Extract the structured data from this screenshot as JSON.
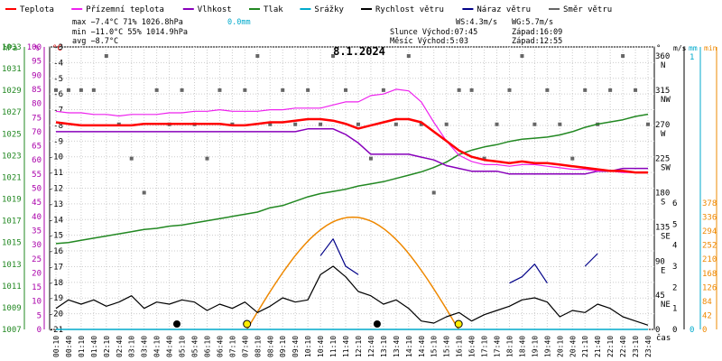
{
  "chart_data": {
    "type": "line",
    "title": "8.1.2024",
    "xlabel": "čas",
    "legend": [
      {
        "label": "Teplota",
        "color": "#ff0000"
      },
      {
        "label": "Přízemní teplota",
        "color": "#ee22ee"
      },
      {
        "label": "Vlhkost",
        "color": "#8800bb"
      },
      {
        "label": "Tlak",
        "color": "#228822"
      },
      {
        "label": "Srážky",
        "color": "#00aacc"
      },
      {
        "label": "Rychlost větru",
        "color": "#000000"
      },
      {
        "label": "Náraz větru",
        "color": "#000088"
      },
      {
        "label": "Směr větru",
        "color": "#666666"
      }
    ],
    "stats": {
      "max": "max −7.4°C  71%  1026.8hPa",
      "min": "min −11.0°C 55%  1014.9hPa",
      "avg": "avg −8.7°C",
      "rain": "0.0mm",
      "ws": "WS:4.3m/s",
      "wg": "WG:5.7m/s",
      "sun": "Slunce Východ:07:45",
      "sun_set": "Západ:16:09",
      "moon": "Měsíc  Východ:5:03",
      "moon_set": "Západ:12:55"
    },
    "axes": {
      "hpa": {
        "unit": "hPa",
        "ticks": [
          "1033",
          "1031",
          "1029",
          "1027",
          "1025",
          "1023",
          "1021",
          "1019",
          "1017",
          "1015",
          "1013",
          "1011",
          "1009",
          "1007"
        ]
      },
      "pct": {
        "unit": "%",
        "ticks": [
          "100",
          "95",
          "90",
          "85",
          "80",
          "75",
          "70",
          "65",
          "60",
          "55",
          "50",
          "45",
          "40",
          "35",
          "30",
          "25",
          "20",
          "15",
          "10",
          "5",
          "0"
        ]
      },
      "temp": {
        "unit": "°C",
        "ticks": [
          "-3",
          "-4",
          "-5",
          "-6",
          "-7",
          "-8",
          "-9",
          "-10",
          "-11",
          "-12",
          "-13",
          "-14",
          "-15",
          "-16",
          "-17",
          "-18",
          "-19",
          "-20",
          "-21"
        ]
      },
      "deg": {
        "unit": "°",
        "ticks": [
          "360",
          "315",
          "270",
          "225",
          "180",
          "135",
          "90",
          "45",
          "0"
        ],
        "dirs": [
          "N",
          "NW",
          "W",
          "SW",
          "S",
          "SE",
          "E",
          "NE"
        ]
      },
      "ms": {
        "unit": "m/s",
        "ticks": [
          "6",
          "5",
          "4",
          "3",
          "2",
          "1",
          "0"
        ]
      },
      "mm": {
        "unit": "mm",
        "ticks": [
          "1",
          "0"
        ]
      },
      "min": {
        "unit": "min",
        "ticks": [
          "378",
          "336",
          "294",
          "252",
          "210",
          "168",
          "126",
          "84",
          "42",
          "0"
        ]
      }
    },
    "x": [
      "00:10",
      "00:40",
      "01:10",
      "01:40",
      "02:10",
      "02:40",
      "03:10",
      "03:40",
      "04:10",
      "04:40",
      "05:10",
      "05:40",
      "06:10",
      "06:40",
      "07:10",
      "07:40",
      "08:10",
      "08:40",
      "09:10",
      "09:40",
      "10:10",
      "10:40",
      "11:10",
      "11:40",
      "12:10",
      "12:40",
      "13:10",
      "13:40",
      "14:10",
      "14:40",
      "15:10",
      "15:40",
      "16:10",
      "16:40",
      "17:10",
      "17:40",
      "18:10",
      "18:40",
      "19:10",
      "19:40",
      "20:10",
      "20:40",
      "21:10",
      "21:40",
      "22:10",
      "22:40",
      "23:10",
      "23:40"
    ],
    "series": [
      {
        "name": "Teplota",
        "values": [
          -7.8,
          -7.9,
          -8.0,
          -8.0,
          -8.0,
          -8.0,
          -8.0,
          -7.9,
          -7.9,
          -7.9,
          -7.9,
          -7.9,
          -7.9,
          -7.9,
          -8.0,
          -8.0,
          -7.9,
          -7.8,
          -7.8,
          -7.7,
          -7.6,
          -7.6,
          -7.7,
          -7.9,
          -8.2,
          -8.0,
          -7.8,
          -7.6,
          -7.6,
          -7.8,
          -8.4,
          -9.0,
          -9.6,
          -10.0,
          -10.2,
          -10.3,
          -10.4,
          -10.3,
          -10.4,
          -10.4,
          -10.5,
          -10.6,
          -10.7,
          -10.8,
          -10.9,
          -10.9,
          -11.0,
          -11.0
        ]
      },
      {
        "name": "Přízemní teplota",
        "values": [
          -7.1,
          -7.2,
          -7.2,
          -7.3,
          -7.3,
          -7.4,
          -7.3,
          -7.3,
          -7.3,
          -7.2,
          -7.2,
          -7.1,
          -7.1,
          -7.0,
          -7.1,
          -7.1,
          -7.1,
          -7.0,
          -7.0,
          -6.9,
          -6.9,
          -6.9,
          -6.7,
          -6.5,
          -6.5,
          -6.1,
          -6.0,
          -5.7,
          -5.8,
          -6.5,
          -7.8,
          -9.0,
          -9.9,
          -10.3,
          -10.5,
          -10.5,
          -10.6,
          -10.5,
          -10.5,
          -10.6,
          -10.7,
          -10.8,
          -10.8,
          -10.9,
          -10.9,
          -11.0,
          -11.0,
          -11.0
        ]
      },
      {
        "name": "Vlhkost",
        "values": [
          70,
          70,
          70,
          70,
          70,
          70,
          70,
          70,
          70,
          70,
          70,
          70,
          70,
          70,
          70,
          70,
          70,
          70,
          70,
          70,
          71,
          71,
          71,
          69,
          66,
          62,
          62,
          62,
          62,
          61,
          60,
          58,
          57,
          56,
          56,
          56,
          55,
          55,
          55,
          55,
          55,
          55,
          55,
          56,
          56,
          57,
          57,
          57
        ]
      },
      {
        "name": "Tlak",
        "values": [
          1014.9,
          1015.0,
          1015.2,
          1015.4,
          1015.6,
          1015.8,
          1016.0,
          1016.2,
          1016.3,
          1016.5,
          1016.6,
          1016.8,
          1017.0,
          1017.2,
          1017.4,
          1017.6,
          1017.8,
          1018.2,
          1018.4,
          1018.8,
          1019.2,
          1019.5,
          1019.7,
          1019.9,
          1020.2,
          1020.4,
          1020.6,
          1020.9,
          1021.2,
          1021.5,
          1021.9,
          1022.4,
          1023.1,
          1023.5,
          1023.8,
          1024.0,
          1024.3,
          1024.5,
          1024.6,
          1024.7,
          1024.9,
          1025.2,
          1025.6,
          1025.9,
          1026.1,
          1026.3,
          1026.6,
          1026.8
        ]
      },
      {
        "name": "Rychlost větru",
        "values": [
          1.0,
          1.4,
          1.2,
          1.4,
          1.1,
          1.3,
          1.6,
          1.0,
          1.3,
          1.2,
          1.4,
          1.3,
          0.9,
          1.2,
          1.0,
          1.3,
          0.8,
          1.1,
          1.5,
          1.3,
          1.4,
          2.6,
          3.0,
          2.5,
          1.8,
          1.6,
          1.2,
          1.4,
          1.0,
          0.4,
          0.3,
          0.6,
          0.8,
          0.4,
          0.7,
          0.9,
          1.1,
          1.4,
          1.5,
          1.3,
          0.6,
          0.9,
          0.8,
          1.2,
          1.0,
          0.6,
          0.4,
          0.2
        ]
      },
      {
        "name": "Náraz větru",
        "values": [
          null,
          null,
          null,
          null,
          null,
          null,
          null,
          null,
          null,
          null,
          null,
          null,
          null,
          null,
          null,
          null,
          null,
          null,
          null,
          null,
          null,
          3.5,
          4.3,
          3.0,
          2.6,
          null,
          null,
          null,
          null,
          null,
          null,
          null,
          null,
          null,
          null,
          null,
          2.2,
          2.5,
          3.1,
          2.2,
          null,
          null,
          3.0,
          3.6,
          null,
          null,
          null,
          null
        ]
      },
      {
        "name": "Srážky",
        "values": [
          0,
          0,
          0,
          0,
          0,
          0,
          0,
          0,
          0,
          0,
          0,
          0,
          0,
          0,
          0,
          0,
          0,
          0,
          0,
          0,
          0,
          0,
          0,
          0,
          0,
          0,
          0,
          0,
          0,
          0,
          0,
          0,
          0,
          0,
          0,
          0,
          0,
          0,
          0,
          0,
          0,
          0,
          0,
          0,
          0,
          0,
          0,
          0
        ]
      },
      {
        "name": "Směr větru",
        "values": [
          315,
          315,
          315,
          315,
          360,
          270,
          225,
          180,
          315,
          270,
          315,
          270,
          225,
          315,
          270,
          315,
          360,
          270,
          315,
          270,
          315,
          270,
          360,
          315,
          270,
          225,
          315,
          270,
          360,
          270,
          180,
          270,
          315,
          315,
          225,
          270,
          315,
          360,
          270,
          315,
          270,
          225,
          315,
          270,
          315,
          360,
          315,
          270
        ]
      }
    ],
    "sun_arc": {
      "rise": "07:45",
      "set": "16:09",
      "max_min": 336
    }
  }
}
